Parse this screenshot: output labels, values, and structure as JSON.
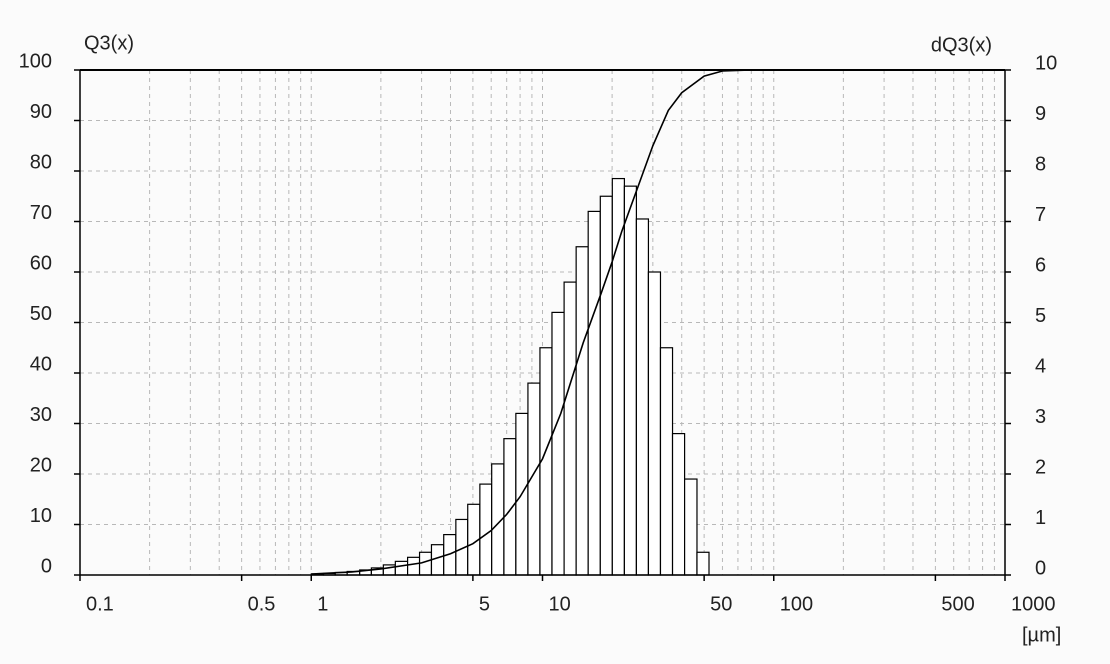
{
  "chart_data": {
    "type": "histogram",
    "y_label": "Q3(x)",
    "y2_label": "dQ3(x)",
    "x_unit": "[µm]",
    "xlog": true,
    "xlim": [
      0.1,
      1000
    ],
    "xticks": [
      0.1,
      0.5,
      1,
      5,
      10,
      50,
      100,
      500,
      1000
    ],
    "xminor": [
      0.2,
      0.3,
      0.4,
      0.6,
      0.7,
      0.8,
      0.9,
      2,
      3,
      4,
      6,
      7,
      8,
      9,
      20,
      30,
      40,
      60,
      70,
      80,
      90,
      200,
      300,
      400,
      600,
      700,
      800,
      900
    ],
    "ylim": [
      0,
      100
    ],
    "yticks": [
      0,
      10,
      20,
      30,
      40,
      50,
      60,
      70,
      80,
      90,
      100
    ],
    "y2lim": [
      0,
      10
    ],
    "y2ticks": [
      0,
      1,
      2,
      3,
      4,
      5,
      6,
      7,
      8,
      9,
      10
    ],
    "grid": true,
    "series": [
      {
        "type": "histogram",
        "axis": "y2",
        "color": "#ffffff",
        "edge_color": "#000000",
        "bins": [
          1.0,
          1.13,
          1.27,
          1.43,
          1.62,
          1.82,
          2.05,
          2.31,
          2.61,
          2.94,
          3.31,
          3.74,
          4.22,
          4.75,
          5.36,
          6.03,
          6.81,
          7.67,
          8.65,
          9.75,
          10.99,
          12.4,
          13.98,
          15.76,
          17.78,
          20.04,
          22.6,
          25.47,
          28.71,
          32.37,
          36.5,
          41.16,
          46.56,
          52.48
        ],
        "values": [
          0.02,
          0.03,
          0.05,
          0.07,
          0.1,
          0.14,
          0.2,
          0.27,
          0.35,
          0.45,
          0.6,
          0.8,
          1.1,
          1.4,
          1.8,
          2.2,
          2.7,
          3.2,
          3.8,
          4.5,
          5.2,
          5.8,
          6.5,
          7.2,
          7.5,
          7.85,
          7.7,
          7.05,
          6.0,
          4.5,
          2.8,
          1.9,
          0.45
        ]
      },
      {
        "type": "line",
        "axis": "y",
        "color": "#000000",
        "x": [
          1,
          1.5,
          2,
          3,
          4,
          5,
          6,
          7,
          8,
          10,
          12,
          15,
          18,
          20,
          22,
          25,
          30,
          35,
          40,
          50,
          60,
          80,
          300
        ],
        "values": [
          0.2,
          0.6,
          1.2,
          2.4,
          4.2,
          6.2,
          8.8,
          12,
          15.5,
          23,
          32,
          46,
          56,
          62,
          68,
          75,
          85,
          92,
          95.5,
          98.8,
          99.8,
          100,
          100
        ]
      }
    ]
  }
}
